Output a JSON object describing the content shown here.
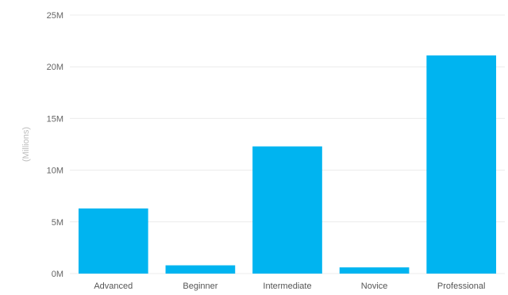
{
  "chart_data": {
    "type": "bar",
    "title": "",
    "xlabel": "",
    "ylabel": "(Millions)",
    "categories": [
      "Advanced",
      "Beginner",
      "Intermediate",
      "Novice",
      "Professional"
    ],
    "values": [
      6300000,
      800000,
      12300000,
      600000,
      21100000
    ],
    "ylim": [
      0,
      25000000
    ],
    "yticks": [
      0,
      5000000,
      10000000,
      15000000,
      20000000,
      25000000
    ],
    "ytick_labels": [
      "0M",
      "5M",
      "10M",
      "15M",
      "20M",
      "25M"
    ],
    "grid": true,
    "bar_color": "#00b4f0",
    "grid_color": "#ececec"
  }
}
